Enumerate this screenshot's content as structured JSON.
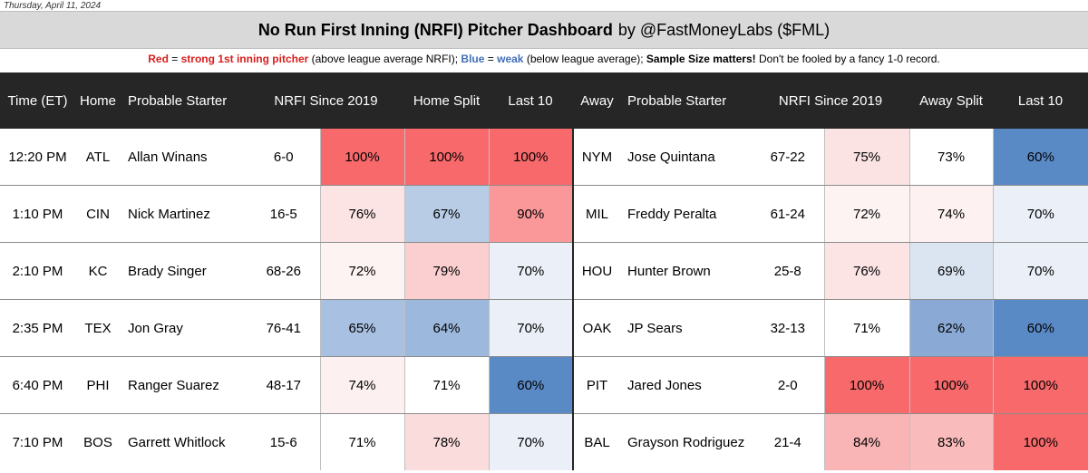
{
  "date": "Thursday, April 11, 2024",
  "title": "No Run First Inning (NRFI) Pitcher Dashboard",
  "byline": "by @FastMoneyLabs ($FML)",
  "legend": {
    "red_word": "Red",
    "red_text": "strong 1st inning pitcher",
    "red_paren": "(above league average NRFI);",
    "blue_word": "Blue",
    "blue_text": "weak",
    "blue_paren": "(below league average);",
    "sample_bold": "Sample Size matters!",
    "tail": "Don't be fooled by a fancy 1-0 record."
  },
  "headers": [
    "Time (ET)",
    "Home",
    "Probable Starter",
    "NRFI Since 2019",
    "Home Split",
    "Last 10",
    "Away",
    "Probable Starter",
    "NRFI Since 2019",
    "Away Split",
    "Last 10"
  ],
  "colors": {
    "header_bg": "#262626",
    "title_bg": "#d9d9d9",
    "red_strong": "#f8696b",
    "blue_strong": "#5a8ac6"
  },
  "rows": [
    {
      "time": "12:20 PM",
      "home": {
        "team": "ATL",
        "starter": "Allan Winans",
        "record": "6-0",
        "nrfi": "100%",
        "split": "100%",
        "last10": "100%"
      },
      "away": {
        "team": "NYM",
        "starter": "Jose Quintana",
        "record": "67-22",
        "nrfi": "75%",
        "split": "73%",
        "last10": "60%"
      },
      "colors": [
        "#f8696b",
        "#f8696b",
        "#f8696b",
        "#fbe3e4",
        "#ffffff",
        "#5a8ac6"
      ]
    },
    {
      "time": "1:10 PM",
      "home": {
        "team": "CIN",
        "starter": "Nick Martinez",
        "record": "16-5",
        "nrfi": "76%",
        "split": "67%",
        "last10": "90%"
      },
      "away": {
        "team": "MIL",
        "starter": "Freddy Peralta",
        "record": "61-24",
        "nrfi": "72%",
        "split": "74%",
        "last10": "70%"
      },
      "colors": [
        "#fce4e5",
        "#b9cce6",
        "#f99799",
        "#fdf3f3",
        "#fdf1f1",
        "#ebf0f8"
      ]
    },
    {
      "time": "2:10 PM",
      "home": {
        "team": "KC",
        "starter": "Brady Singer",
        "record": "68-26",
        "nrfi": "72%",
        "split": "79%",
        "last10": "70%"
      },
      "away": {
        "team": "HOU",
        "starter": "Hunter Brown",
        "record": "25-8",
        "nrfi": "76%",
        "split": "69%",
        "last10": "70%"
      },
      "colors": [
        "#fdf3f3",
        "#fbcfd0",
        "#ebf0f8",
        "#fce4e5",
        "#dbe5f2",
        "#ebf0f8"
      ]
    },
    {
      "time": "2:35 PM",
      "home": {
        "team": "TEX",
        "starter": "Jon Gray",
        "record": "76-41",
        "nrfi": "65%",
        "split": "64%",
        "last10": "70%"
      },
      "away": {
        "team": "OAK",
        "starter": "JP Sears",
        "record": "32-13",
        "nrfi": "71%",
        "split": "62%",
        "last10": "60%"
      },
      "colors": [
        "#a8c0e1",
        "#9cb8dd",
        "#ebf0f8",
        "#ffffff",
        "#8aaad5",
        "#5a8ac6"
      ]
    },
    {
      "time": "6:40 PM",
      "home": {
        "team": "PHI",
        "starter": "Ranger Suarez",
        "record": "48-17",
        "nrfi": "74%",
        "split": "71%",
        "last10": "60%"
      },
      "away": {
        "team": "PIT",
        "starter": "Jared Jones",
        "record": "2-0",
        "nrfi": "100%",
        "split": "100%",
        "last10": "100%"
      },
      "colors": [
        "#fdf0f0",
        "#ffffff",
        "#5a8ac6",
        "#f8696b",
        "#f8696b",
        "#f8696b"
      ]
    },
    {
      "time": "7:10 PM",
      "home": {
        "team": "BOS",
        "starter": "Garrett Whitlock",
        "record": "15-6",
        "nrfi": "71%",
        "split": "78%",
        "last10": "70%"
      },
      "away": {
        "team": "BAL",
        "starter": "Grayson Rodriguez",
        "record": "21-4",
        "nrfi": "84%",
        "split": "83%",
        "last10": "100%"
      },
      "colors": [
        "#ffffff",
        "#fbdcdd",
        "#ebf0f8",
        "#f9b5b6",
        "#fabbbc",
        "#f8696b"
      ]
    }
  ]
}
